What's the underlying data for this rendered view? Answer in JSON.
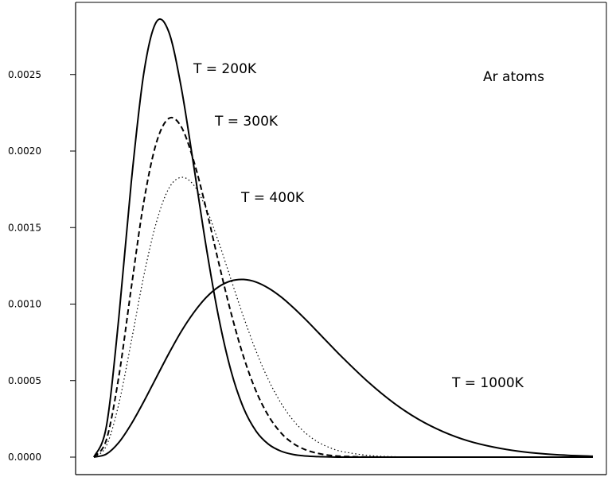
{
  "chart_data": {
    "type": "line",
    "title": "Ar atoms",
    "xlabel": "",
    "ylabel": "",
    "xlim": [
      0,
      2000
    ],
    "ylim": [
      0,
      0.00285
    ],
    "grid": false,
    "legend": "none",
    "y_ticks": [
      "0.0000",
      "0.0005",
      "0.0010",
      "0.0015",
      "0.0020",
      "0.0025"
    ],
    "y_tick_values": [
      0,
      0.0005,
      0.001,
      0.0015,
      0.002,
      0.0025
    ],
    "x_ticks": [],
    "x": [
      0,
      50,
      100,
      150,
      200,
      250,
      300,
      350,
      400,
      450,
      500,
      550,
      600,
      650,
      700,
      750,
      800,
      850,
      900,
      950,
      1000,
      1100,
      1200,
      1300,
      1400,
      1500,
      1600,
      1700,
      1800,
      1900,
      2000
    ],
    "series": [
      {
        "name": "T = 200K",
        "style": "solid",
        "label_text": "T = 200K",
        "values": [
          0,
          0.000201,
          0.000914,
          0.001801,
          0.002509,
          0.002843,
          0.002779,
          0.002416,
          0.001905,
          0.001374,
          0.000914,
          0.000561,
          0.00032,
          0.00017,
          8.4e-05,
          3.9e-05,
          1.7e-05,
          7e-06,
          3e-06,
          1e-06,
          0,
          0,
          0,
          0,
          0,
          0,
          0,
          0,
          0,
          0,
          0
        ]
      },
      {
        "name": "T = 300K",
        "style": "dashed",
        "label_text": "T = 300K",
        "values": [
          0,
          0.000113,
          0.000528,
          0.001109,
          0.001668,
          0.002052,
          0.002213,
          0.002159,
          0.001936,
          0.001623,
          0.001272,
          0.00094,
          0.000655,
          0.000431,
          0.000269,
          0.000158,
          8.8e-05,
          4.7e-05,
          2.4e-05,
          1.1e-05,
          5e-06,
          1e-06,
          0,
          0,
          0,
          0,
          0,
          0,
          0,
          0,
          0
        ]
      },
      {
        "name": "T = 400K",
        "style": "dotted",
        "label_text": "T = 400K",
        "values": [
          0,
          7.4e-05,
          0.000349,
          0.000757,
          0.001185,
          0.001532,
          0.001755,
          0.001828,
          0.001778,
          0.001625,
          0.001405,
          0.001159,
          0.000915,
          0.000693,
          0.000504,
          0.000353,
          0.000238,
          0.000155,
          9.7e-05,
          5.9e-05,
          3.5e-05,
          1.1e-05,
          3e-06,
          1e-06,
          0,
          0,
          0,
          0,
          0,
          0,
          0
        ]
      },
      {
        "name": "T = 1000K",
        "style": "solid",
        "label_text": "T = 1000K",
        "values": [
          0,
          2e-05,
          9.6e-05,
          0.000217,
          0.000363,
          0.00052,
          0.000676,
          0.000821,
          0.000944,
          0.001043,
          0.001113,
          0.001152,
          0.001161,
          0.001144,
          0.001104,
          0.001047,
          0.000976,
          0.000897,
          0.000813,
          0.000728,
          0.000645,
          0.00049,
          0.000356,
          0.000248,
          0.000166,
          0.000106,
          6.6e-05,
          3.9e-05,
          2.2e-05,
          1.2e-05,
          6e-06
        ]
      }
    ]
  },
  "colors": {
    "background": "#ffffff",
    "axis": "#000000",
    "line": "#000000"
  }
}
